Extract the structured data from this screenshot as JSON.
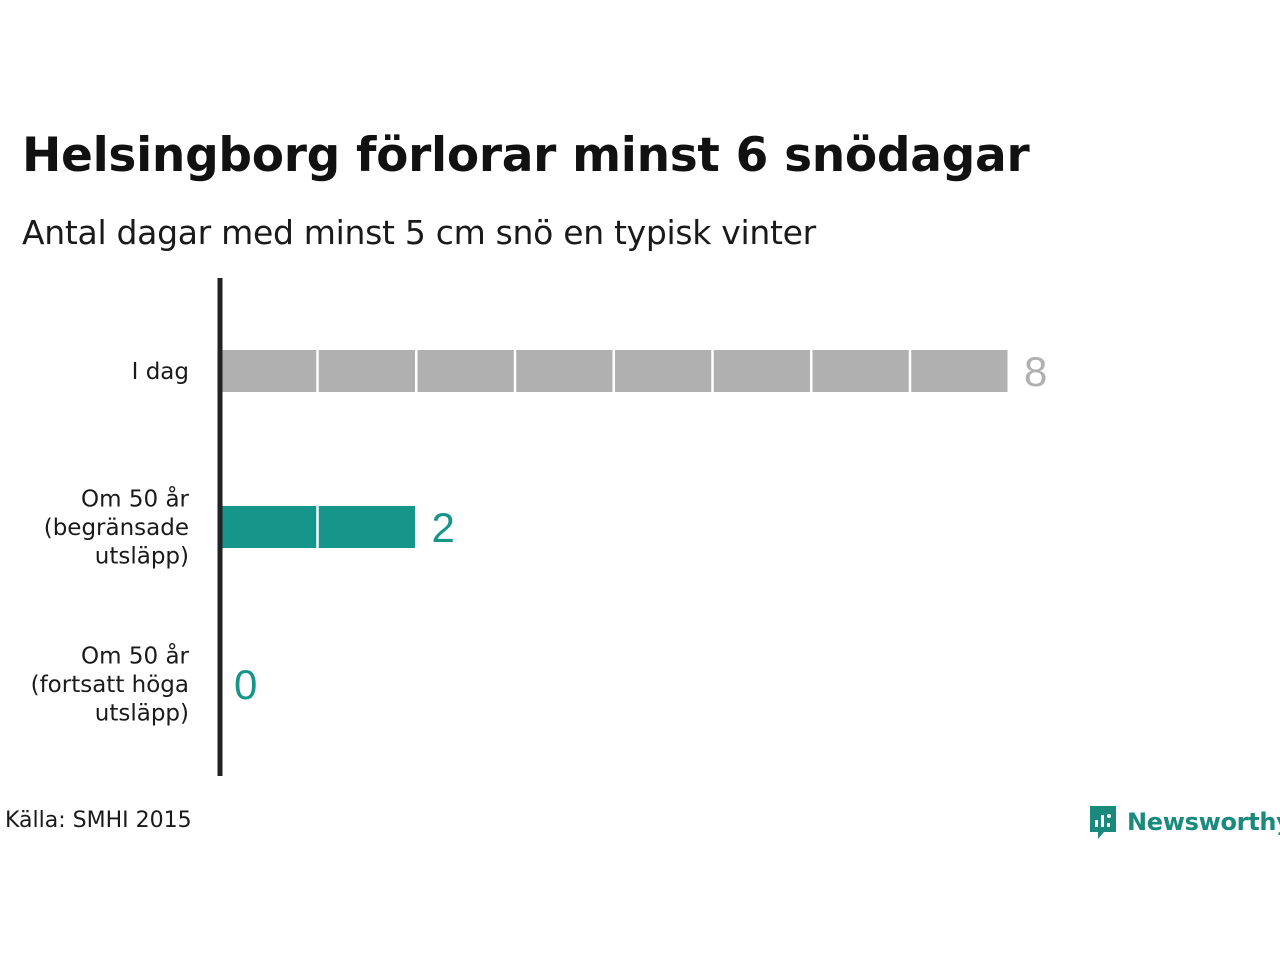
{
  "title": "Helsingborg förlorar minst 6 snödagar",
  "subtitle": "Antal dagar med minst 5 cm snö en typisk vinter",
  "source": "Källa: SMHI 2015",
  "brand": {
    "name": "Newsworthy",
    "icon": "newsworthy-logo-icon",
    "color": "#1a8a7d"
  },
  "colors": {
    "grey": "#b0b0b0",
    "teal": "#16968a",
    "axis": "#222222"
  },
  "chart_data": {
    "type": "bar",
    "orientation": "horizontal",
    "categories": [
      [
        "I dag"
      ],
      [
        "Om 50 år",
        "(begränsade",
        "utsläpp)"
      ],
      [
        "Om 50 år",
        "(fortsatt höga",
        "utsläpp)"
      ]
    ],
    "values": [
      8,
      2,
      0
    ],
    "value_labels": [
      "8",
      "2",
      "0"
    ],
    "bar_colors": [
      "grey",
      "teal",
      "teal"
    ],
    "segmented": true,
    "grid": false,
    "xlim": [
      0,
      8
    ]
  }
}
